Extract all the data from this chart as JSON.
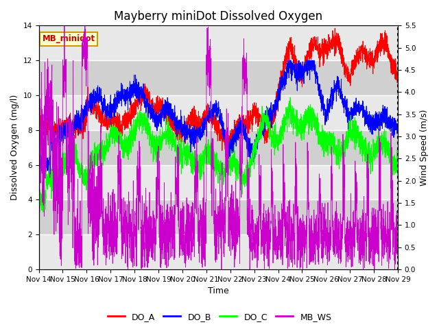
{
  "title": "Mayberry miniDot Dissolved Oxygen",
  "xlabel": "Time",
  "ylabel_left": "Dissolved Oxygen (mg/l)",
  "ylabel_right": "Wind Speed (m/s)",
  "annotation": "MB_minidot",
  "x_start": 14,
  "x_end": 29,
  "x_ticks": [
    14,
    15,
    16,
    17,
    18,
    19,
    20,
    21,
    22,
    23,
    24,
    25,
    26,
    27,
    28,
    29
  ],
  "x_tick_labels": [
    "Nov 14",
    "Nov 15",
    "Nov 16",
    "Nov 17",
    "Nov 18",
    "Nov 19",
    "Nov 20",
    "Nov 21",
    "Nov 22",
    "Nov 23",
    "Nov 24",
    "Nov 25",
    "Nov 26",
    "Nov 27",
    "Nov 28",
    "Nov 29"
  ],
  "ylim_left": [
    0,
    14
  ],
  "ylim_right": [
    0.0,
    5.5
  ],
  "yticks_left": [
    0,
    2,
    4,
    6,
    8,
    10,
    12,
    14
  ],
  "yticks_right": [
    0.0,
    0.5,
    1.0,
    1.5,
    2.0,
    2.5,
    3.0,
    3.5,
    4.0,
    4.5,
    5.0,
    5.5
  ],
  "color_DO_A": "red",
  "color_DO_B": "blue",
  "color_DO_C": "lime",
  "color_MB_WS": "#cc00cc",
  "legend_entries": [
    "DO_A",
    "DO_B",
    "DO_C",
    "MB_WS"
  ],
  "bg_color": "#d8d8d8",
  "band_color_light": "#e8e8e8",
  "band_color_dark": "#d0d0d0",
  "grid_color": "white",
  "annotation_bg": "#ffffcc",
  "annotation_border": "#cc9900",
  "annotation_text_color": "#cc0000",
  "n_points": 3000,
  "title_fontsize": 12,
  "label_fontsize": 9,
  "tick_fontsize": 7.5
}
